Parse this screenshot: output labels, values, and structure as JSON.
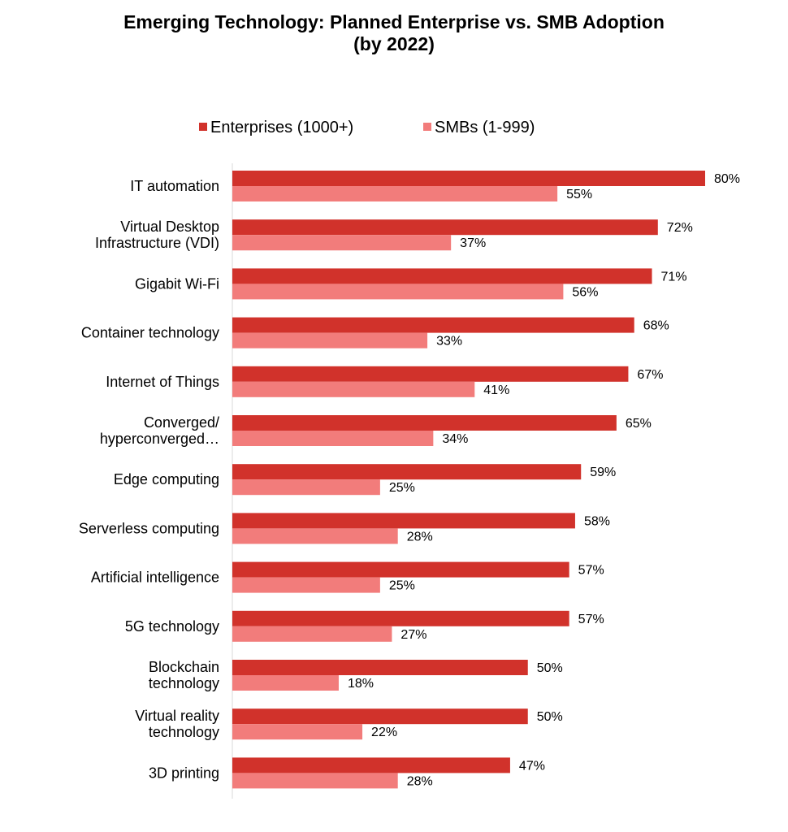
{
  "chart_data": {
    "type": "bar",
    "orientation": "horizontal",
    "title": [
      "Emerging Technology: Planned Enterprise vs. SMB Adoption",
      "(by 2022)"
    ],
    "xlabel": "",
    "ylabel": "",
    "xlim": [
      0,
      80
    ],
    "grid": false,
    "legend_position": "top",
    "value_suffix": "%",
    "categories": [
      [
        "IT automation"
      ],
      [
        "Virtual Desktop",
        "Infrastructure (VDI)"
      ],
      [
        "Gigabit Wi-Fi"
      ],
      [
        "Container technology"
      ],
      [
        "Internet of Things"
      ],
      [
        "Converged/",
        "hyperconverged…"
      ],
      [
        "Edge computing"
      ],
      [
        "Serverless computing"
      ],
      [
        "Artificial intelligence"
      ],
      [
        "5G technology"
      ],
      [
        "Blockchain",
        "technology"
      ],
      [
        "Virtual reality",
        "technology"
      ],
      [
        "3D printing"
      ]
    ],
    "series": [
      {
        "name": "Enterprises (1000+)",
        "color": "#d1322b",
        "values": [
          80,
          72,
          71,
          68,
          67,
          65,
          59,
          58,
          57,
          57,
          50,
          50,
          47
        ]
      },
      {
        "name": "SMBs (1-999)",
        "color": "#f27c7b",
        "values": [
          55,
          37,
          56,
          33,
          41,
          34,
          25,
          28,
          25,
          27,
          18,
          22,
          28
        ]
      }
    ]
  }
}
